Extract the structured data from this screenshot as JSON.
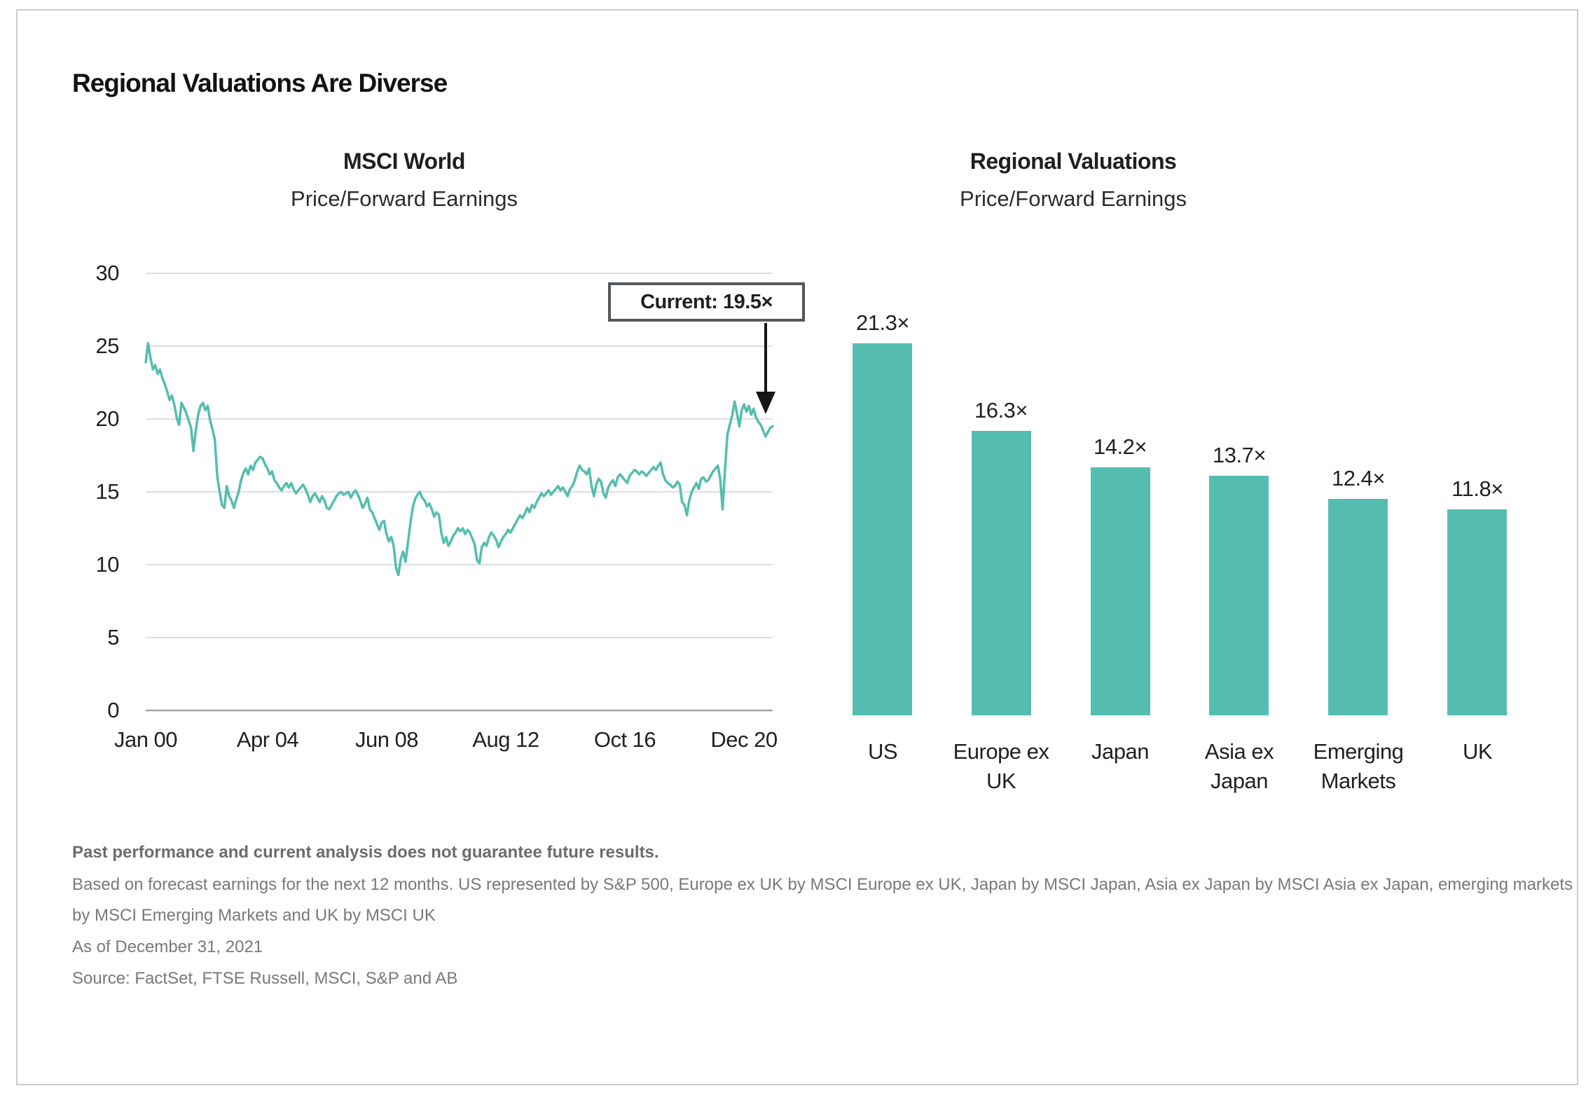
{
  "page": {
    "title": "Regional Valuations Are Diverse"
  },
  "colors": {
    "accent_teal": "#55bdaf",
    "text_dark": "#231f20",
    "text_gray": "#78797c",
    "gridline": "#d3d3d3",
    "axis_line": "#a6a6a8",
    "annotation_border": "#55585c",
    "arrow_black": "#161616"
  },
  "footer": {
    "disclaimer_bold": "Past performance and current analysis does not guarantee future results.",
    "methodology_line1": "Based on forecast earnings for the next 12 months. US represented by S&P 500, Europe ex UK by MSCI Europe ex UK, Japan by MSCI Japan, Asia ex Japan by MSCI Asia ex Japan, emerging markets",
    "methodology_line2": "by MSCI Emerging Markets and UK by MSCI UK",
    "as_of": "As of December 31, 2021",
    "source": "Source: FactSet, FTSE Russell, MSCI, S&P and AB"
  },
  "chart_data": [
    {
      "type": "line",
      "title": "MSCI World",
      "subtitle": "Price/Forward Earnings",
      "x_start": "Jan 2000",
      "x_end": "Dec 2021",
      "x_tick_labels": [
        "Jan 00",
        "Apr 04",
        "Jun 08",
        "Aug 12",
        "Oct 16",
        "Dec 20"
      ],
      "x_tick_months": [
        0,
        51,
        101,
        151,
        201,
        251
      ],
      "y_ticks": [
        0,
        5,
        10,
        15,
        20,
        25,
        30
      ],
      "ylim": [
        0,
        30
      ],
      "grid": "horizontal",
      "legend": "none",
      "line_color": "#55bdaf",
      "annotation": {
        "label": "Current: 19.5×",
        "value": 19.5
      },
      "values_monthly": [
        23.9,
        25.2,
        24.2,
        23.4,
        23.7,
        23.1,
        23.4,
        22.8,
        22.4,
        21.9,
        21.3,
        21.6,
        21.0,
        20.1,
        19.6,
        21.1,
        20.8,
        20.4,
        19.9,
        19.4,
        17.8,
        19.2,
        20.3,
        20.9,
        21.1,
        20.6,
        20.9,
        19.9,
        19.3,
        18.6,
        16.1,
        15.0,
        14.1,
        13.9,
        15.4,
        14.7,
        14.4,
        13.9,
        14.5,
        15.0,
        15.8,
        16.3,
        16.6,
        16.2,
        16.8,
        16.5,
        17.0,
        17.2,
        17.4,
        17.3,
        16.9,
        16.6,
        16.2,
        16.4,
        15.8,
        15.6,
        15.3,
        15.1,
        15.4,
        15.6,
        15.3,
        15.6,
        15.2,
        14.9,
        15.1,
        15.3,
        15.5,
        15.2,
        14.8,
        14.3,
        14.7,
        14.9,
        14.6,
        14.3,
        14.7,
        14.4,
        13.9,
        13.8,
        14.1,
        14.4,
        14.7,
        14.9,
        15.0,
        14.8,
        14.9,
        15.0,
        14.6,
        14.9,
        15.1,
        14.8,
        14.4,
        13.9,
        14.2,
        14.6,
        13.8,
        13.6,
        13.2,
        12.8,
        12.4,
        12.9,
        13.0,
        12.1,
        11.6,
        11.9,
        11.3,
        9.8,
        9.3,
        10.4,
        10.9,
        10.2,
        11.5,
        12.8,
        13.9,
        14.5,
        14.8,
        15.0,
        14.6,
        14.4,
        14.0,
        14.2,
        13.8,
        13.3,
        13.6,
        13.4,
        12.2,
        11.5,
        11.9,
        11.3,
        11.6,
        12.0,
        12.2,
        12.5,
        12.3,
        12.5,
        12.1,
        12.4,
        12.2,
        11.8,
        11.4,
        10.3,
        10.1,
        11.2,
        11.5,
        11.3,
        11.9,
        12.2,
        12.0,
        11.7,
        11.2,
        11.6,
        11.9,
        12.1,
        12.4,
        12.2,
        12.5,
        12.8,
        13.1,
        13.4,
        13.2,
        13.5,
        13.9,
        13.6,
        14.1,
        13.9,
        14.3,
        14.6,
        14.9,
        14.7,
        14.9,
        15.1,
        14.8,
        15.0,
        15.2,
        15.4,
        15.1,
        15.3,
        15.0,
        14.7,
        15.2,
        15.4,
        15.8,
        16.4,
        16.8,
        16.5,
        16.4,
        16.2,
        16.6,
        15.4,
        14.7,
        15.5,
        15.9,
        15.7,
        14.9,
        14.6,
        15.3,
        15.6,
        15.8,
        15.4,
        16.0,
        16.2,
        16.0,
        15.8,
        15.6,
        16.1,
        16.3,
        16.5,
        16.4,
        16.2,
        16.4,
        16.3,
        16.1,
        16.3,
        16.5,
        16.7,
        16.5,
        16.8,
        17.0,
        16.2,
        15.8,
        15.6,
        15.5,
        15.3,
        15.4,
        15.7,
        15.5,
        14.3,
        14.1,
        13.4,
        14.4,
        15.0,
        15.3,
        15.6,
        15.2,
        15.9,
        16.0,
        15.7,
        15.8,
        16.1,
        16.4,
        16.6,
        16.8,
        15.9,
        13.8,
        16.5,
        18.9,
        19.6,
        20.2,
        21.2,
        20.4,
        19.5,
        20.6,
        21.0,
        20.5,
        20.9,
        20.3,
        20.7,
        20.1,
        19.8,
        19.6,
        19.2,
        18.8,
        19.1,
        19.4,
        19.5
      ]
    },
    {
      "type": "bar",
      "title": "Regional Valuations",
      "subtitle": "Price/Forward Earnings",
      "categories": [
        "US",
        "Europe ex UK",
        "Japan",
        "Asia ex Japan",
        "Emerging Markets",
        "UK"
      ],
      "category_lines": [
        [
          "US"
        ],
        [
          "Europe ex",
          "UK"
        ],
        [
          "Japan"
        ],
        [
          "Asia ex",
          "Japan"
        ],
        [
          "Emerging",
          "Markets"
        ],
        [
          "UK"
        ]
      ],
      "values": [
        21.3,
        16.3,
        14.2,
        13.7,
        12.4,
        11.8
      ],
      "value_labels": [
        "21.3×",
        "16.3×",
        "14.2×",
        "13.7×",
        "12.4×",
        "11.8×"
      ],
      "bar_color": "#55bdaf",
      "grid": "off",
      "legend": "none",
      "ylim": [
        0,
        21.3
      ]
    }
  ]
}
